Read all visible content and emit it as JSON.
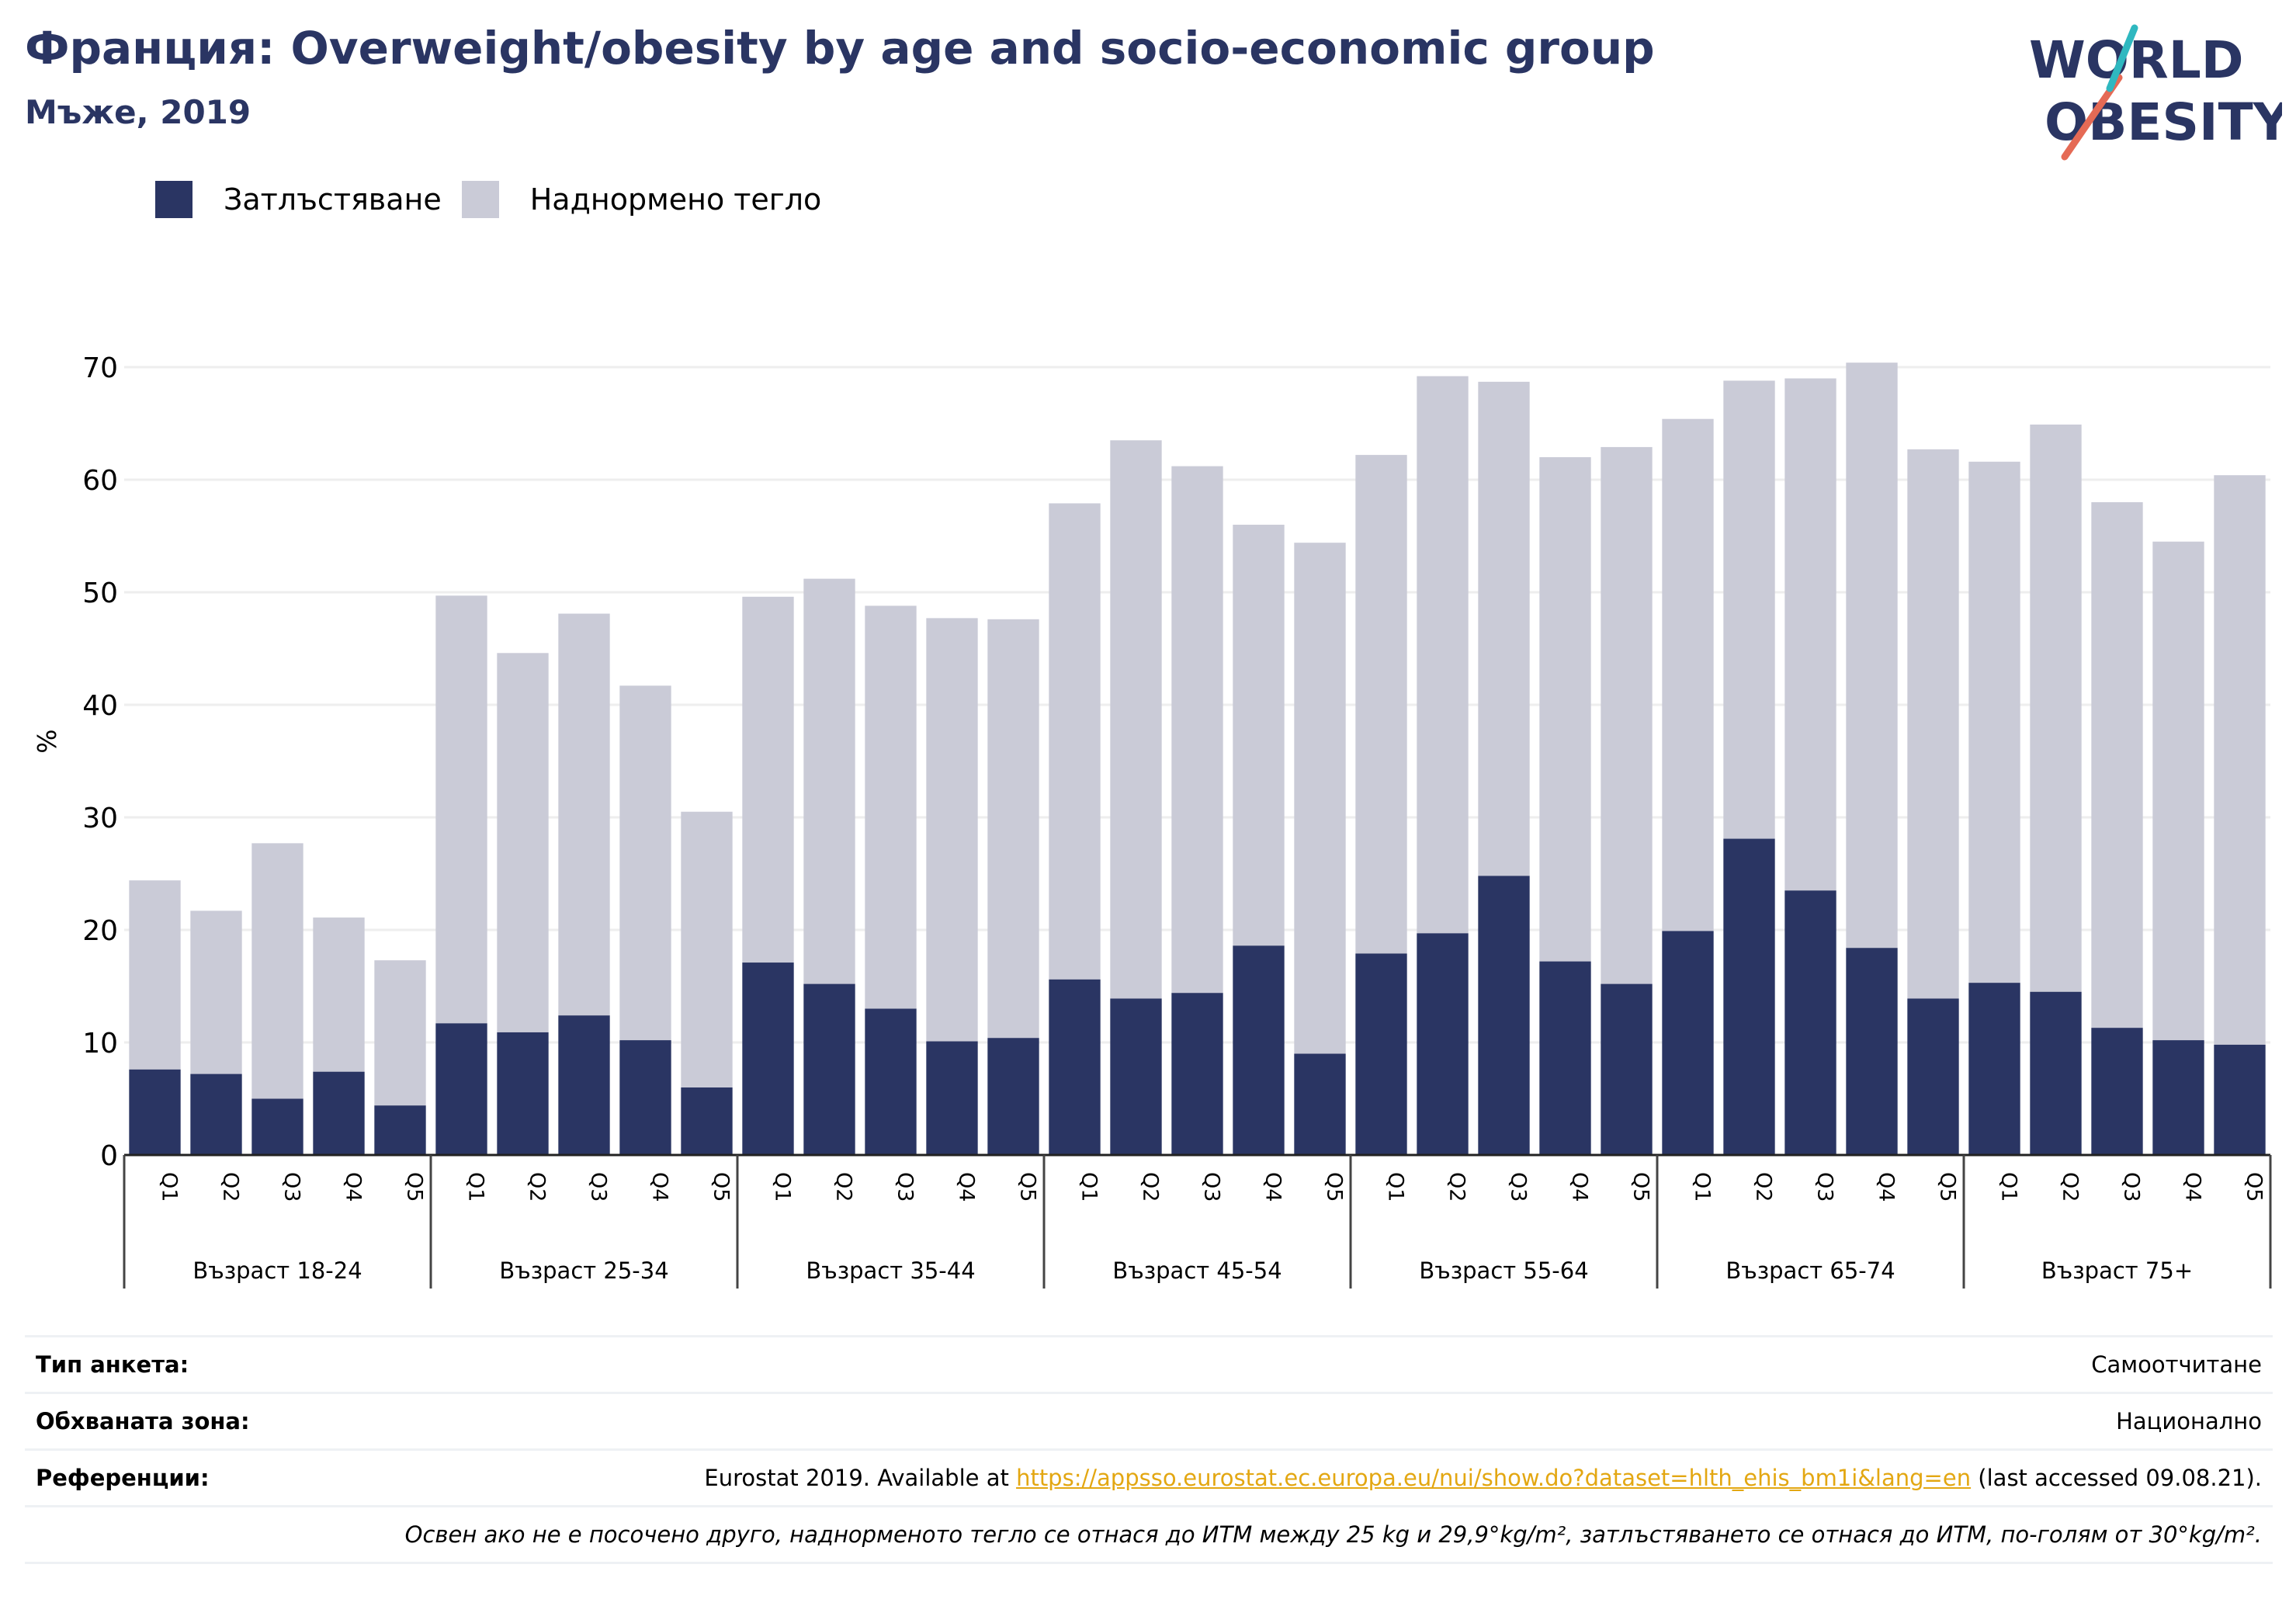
{
  "header": {
    "title": "Франция: Overweight/obesity by age and socio-economic group",
    "subtitle": "Мъже, 2019"
  },
  "logo": {
    "line1": "WORLD",
    "line2": "OBESITY"
  },
  "legend": {
    "obesity_label": "Затлъстяване",
    "overweight_label": "Наднормено тегло"
  },
  "colors": {
    "obesity": "#2a3563",
    "overweight": "#cacbd7",
    "accent_teal": "#2fb8c0",
    "accent_red": "#e56a55"
  },
  "chart_data": {
    "type": "bar",
    "stacked": true,
    "ylabel": "%",
    "ylim": [
      0,
      70
    ],
    "yticks": [
      0,
      10,
      20,
      30,
      40,
      50,
      60,
      70
    ],
    "grid": true,
    "legend_position": "top-left",
    "categories": [
      "Q1",
      "Q2",
      "Q3",
      "Q4",
      "Q5"
    ],
    "groups": [
      "Възраст 18-24",
      "Възраст 25-34",
      "Възраст 35-44",
      "Възраст 45-54",
      "Възраст 55-64",
      "Възраст 65-74",
      "Възраст 75+"
    ],
    "series": [
      {
        "name": "Затлъстяване",
        "values": [
          [
            7.6,
            7.2,
            5.0,
            7.4,
            4.4
          ],
          [
            11.7,
            10.9,
            12.4,
            10.2,
            6.0
          ],
          [
            17.1,
            15.2,
            13.0,
            10.1,
            10.4
          ],
          [
            15.6,
            13.9,
            14.4,
            18.6,
            9.0
          ],
          [
            17.9,
            19.7,
            24.8,
            17.2,
            15.2
          ],
          [
            19.9,
            28.1,
            23.5,
            18.4,
            13.9
          ],
          [
            15.3,
            14.5,
            11.3,
            10.2,
            9.8
          ]
        ]
      },
      {
        "name": "Наднормено тегло",
        "values": [
          [
            16.8,
            14.5,
            22.7,
            13.7,
            12.9
          ],
          [
            38.0,
            33.7,
            35.7,
            31.5,
            24.5
          ],
          [
            32.5,
            36.0,
            35.8,
            37.6,
            37.2
          ],
          [
            42.3,
            49.6,
            46.8,
            37.4,
            45.4
          ],
          [
            44.3,
            49.5,
            43.9,
            44.8,
            47.7
          ],
          [
            45.5,
            40.7,
            45.5,
            52.0,
            48.8
          ],
          [
            46.3,
            50.4,
            46.7,
            44.3,
            50.6
          ]
        ]
      }
    ]
  },
  "info": {
    "survey_type_key": "Тип анкета:",
    "survey_type_val": "Самоотчитане",
    "coverage_key": "Обхваната зона:",
    "coverage_val": "Национално",
    "references_key": "Референции:",
    "references_prefix": "Eurostat 2019. Available at ",
    "references_link": "https://appsso.eurostat.ec.europa.eu/nui/show.do?dataset=hlth_ehis_bm1i&lang=en",
    "references_suffix": " (last accessed 09.08.21).",
    "note": "Освен ако не е посочено друго, наднорменото тегло се отнася до ИТМ между 25 kg и 29,9°kg/m², затлъстяването се отнася до ИТМ, по-голям от 30°kg/m²."
  }
}
